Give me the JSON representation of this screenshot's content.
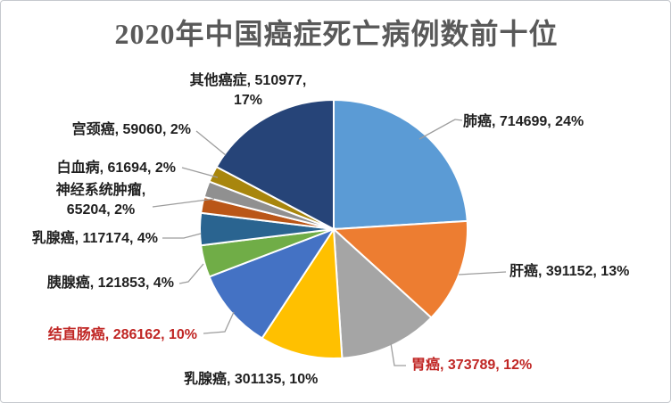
{
  "title": "2020年中国癌症死亡病例数前十位",
  "colors": {
    "title": "#595959",
    "black_label": "#1f1f1f",
    "red_label": "#c02624",
    "leader": "#9d9d9d",
    "slice_border": "#ffffff",
    "background": "#ffffff",
    "frame_border": "#c6c9ce"
  },
  "chart_data": {
    "type": "pie",
    "title": "2020年中国癌症死亡病例数前十位",
    "start_angle_deg": 0,
    "direction": "clockwise",
    "legend": "none",
    "label_format": "name, value, percent",
    "slices": [
      {
        "id": "lung-cancer",
        "label": "肺癌",
        "value": 714699,
        "pct": 24,
        "color": "#5B9BD5",
        "red": false
      },
      {
        "id": "liver-cancer",
        "label": "肝癌",
        "value": 391152,
        "pct": 13,
        "color": "#ED7D31",
        "red": false
      },
      {
        "id": "stomach-cancer",
        "label": "胃癌",
        "value": 373789,
        "pct": 12,
        "color": "#A5A5A5",
        "red": true
      },
      {
        "id": "breast-cancer-301135",
        "label": "乳腺癌",
        "value": 301135,
        "pct": 10,
        "color": "#FFC000",
        "red": false
      },
      {
        "id": "colorectal-cancer",
        "label": "结直肠癌",
        "value": 286162,
        "pct": 10,
        "color": "#4472C4",
        "red": true
      },
      {
        "id": "pancreatic-cancer",
        "label": "胰腺癌",
        "value": 121853,
        "pct": 4,
        "color": "#70AD47",
        "red": false
      },
      {
        "id": "breast-cancer-117174",
        "label": "乳腺癌",
        "value": 117174,
        "pct": 4,
        "color": "#2A6490",
        "red": false
      },
      {
        "id": "nervous-system-tumor",
        "label": "神经系统肿瘤",
        "value": 65204,
        "pct": 2,
        "color": "#BA5617",
        "red": false
      },
      {
        "id": "leukemia",
        "label": "白血病",
        "value": 61694,
        "pct": 2,
        "color": "#909090",
        "red": false
      },
      {
        "id": "cervical-cancer",
        "label": "宫颈癌",
        "value": 59060,
        "pct": 2,
        "color": "#A8860D",
        "red": false
      },
      {
        "id": "other-cancers",
        "label": "其他癌症",
        "value": 510977,
        "pct": 17,
        "color": "#264478",
        "red": false
      }
    ]
  }
}
